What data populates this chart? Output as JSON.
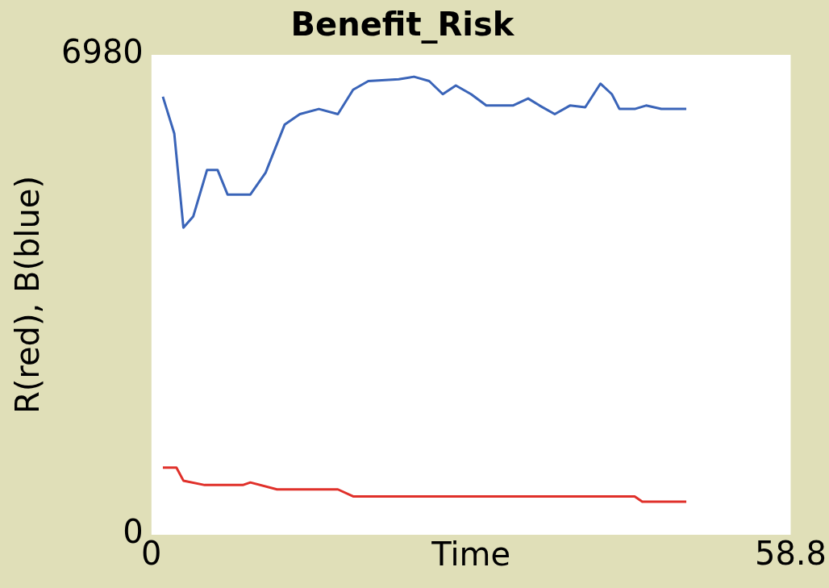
{
  "chart_data": {
    "type": "line",
    "title": "Benefit_Risk",
    "xlabel": "Time",
    "ylabel": "R(red), B(blue)",
    "xlim": [
      0,
      58.8
    ],
    "xticks": [
      0,
      58.8
    ],
    "ylim": [
      0,
      6980
    ],
    "yticks": [
      0,
      6980
    ],
    "grid": false,
    "legend": false,
    "marker": "none",
    "line_style": "solid",
    "series": [
      {
        "color": "#3a64b8",
        "x": [
          1.05,
          2.1,
          2.94,
          3.85,
          5.11,
          6.09,
          7.0,
          9.1,
          10.5,
          12.25,
          13.65,
          15.4,
          17.15,
          18.55,
          19.95,
          22.75,
          24.15,
          25.55,
          26.8,
          28.0,
          29.4,
          30.8,
          33.25,
          34.65,
          35.7,
          37.1,
          38.5,
          39.9,
          41.3,
          42.35,
          43.05,
          44.45,
          45.5,
          46.9,
          49.2
        ],
        "values": [
          6371,
          5837,
          4467,
          4632,
          5304,
          5304,
          4949,
          4949,
          5266,
          5964,
          6117,
          6193,
          6117,
          6472,
          6599,
          6624,
          6662,
          6599,
          6408,
          6535,
          6408,
          6243,
          6243,
          6345,
          6243,
          6117,
          6243,
          6218,
          6561,
          6408,
          6193,
          6193,
          6243,
          6193,
          6193
        ]
      },
      {
        "color": "#e0302a",
        "x": [
          1.05,
          2.3,
          2.94,
          4.9,
          8.4,
          9.1,
          11.55,
          17.15,
          18.55,
          44.45,
          45.15,
          49.2
        ],
        "values": [
          977,
          977,
          787,
          723,
          723,
          761,
          660,
          660,
          558,
          558,
          482,
          482
        ]
      }
    ]
  }
}
